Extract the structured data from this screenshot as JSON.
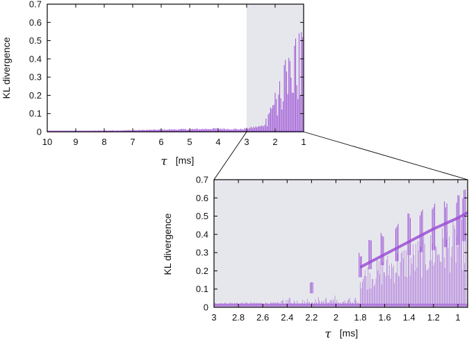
{
  "colors": {
    "series": "#9b4fd6",
    "shade": "#e6e7ec",
    "axes": "#000000"
  },
  "chart_data": [
    {
      "type": "scatter",
      "name": "main",
      "xlabel_symbol": "τ",
      "xlabel_unit": "[ms]",
      "ylabel": "KL divergence",
      "xlim": [
        10,
        1
      ],
      "ylim": [
        0,
        0.7
      ],
      "x_reversed": true,
      "xticks": [
        "10",
        "9",
        "8",
        "7",
        "6",
        "5",
        "4",
        "3",
        "2",
        "1"
      ],
      "yticks": [
        "0",
        "0.1",
        "0.2",
        "0.3",
        "0.4",
        "0.5",
        "0.6",
        "0.7"
      ],
      "shaded_region_x": [
        3,
        1
      ],
      "envelope": [
        {
          "x": 10,
          "low": 0.0,
          "high": 0.003
        },
        {
          "x": 9,
          "low": 0.0,
          "high": 0.005
        },
        {
          "x": 8,
          "low": 0.0,
          "high": 0.008
        },
        {
          "x": 7,
          "low": 0.0,
          "high": 0.011
        },
        {
          "x": 6,
          "low": 0.0,
          "high": 0.015
        },
        {
          "x": 5,
          "low": 0.0,
          "high": 0.018
        },
        {
          "x": 4,
          "low": 0.0,
          "high": 0.022
        },
        {
          "x": 3.2,
          "low": 0.0,
          "high": 0.018
        },
        {
          "x": 2.4,
          "low": 0.0,
          "high": 0.04
        },
        {
          "x": 2.2,
          "low": 0.0,
          "high": 0.14
        },
        {
          "x": 1.8,
          "low": 0.0,
          "high": 0.3
        },
        {
          "x": 1.6,
          "low": 0.0,
          "high": 0.42
        },
        {
          "x": 1.4,
          "low": 0.0,
          "high": 0.48
        },
        {
          "x": 1.2,
          "low": 0.0,
          "high": 0.55
        },
        {
          "x": 1.0,
          "low": 0.0,
          "high": 0.6
        }
      ]
    },
    {
      "type": "scatter",
      "name": "inset",
      "xlabel_symbol": "τ",
      "xlabel_unit": "[ms]",
      "ylabel": "KL divergence",
      "xlim": [
        3,
        0.92
      ],
      "ylim": [
        0,
        0.7
      ],
      "x_reversed": true,
      "xticks": [
        "3",
        "2.8",
        "2.6",
        "2.4",
        "2.2",
        "2",
        "1.8",
        "1.6",
        "1.4",
        "1.2",
        "1"
      ],
      "yticks": [
        "0",
        "0.1",
        "0.2",
        "0.3",
        "0.4",
        "0.5",
        "0.6",
        "0.7"
      ],
      "trend_upper": [
        {
          "x": 1.8,
          "y": 0.22
        },
        {
          "x": 1.6,
          "y": 0.29
        },
        {
          "x": 1.4,
          "y": 0.36
        },
        {
          "x": 1.2,
          "y": 0.43
        },
        {
          "x": 1.0,
          "y": 0.49
        },
        {
          "x": 0.92,
          "y": 0.52
        }
      ],
      "baseline": 0.015,
      "spikes": [
        {
          "x": 2.2,
          "y": 0.14
        },
        {
          "x": 1.8,
          "y": 0.3
        },
        {
          "x": 1.72,
          "y": 0.38
        },
        {
          "x": 1.62,
          "y": 0.42
        },
        {
          "x": 1.5,
          "y": 0.46
        },
        {
          "x": 1.4,
          "y": 0.52
        },
        {
          "x": 1.3,
          "y": 0.55
        },
        {
          "x": 1.2,
          "y": 0.57
        },
        {
          "x": 1.1,
          "y": 0.6
        },
        {
          "x": 1.0,
          "y": 0.62
        },
        {
          "x": 0.95,
          "y": 0.66
        }
      ]
    }
  ]
}
